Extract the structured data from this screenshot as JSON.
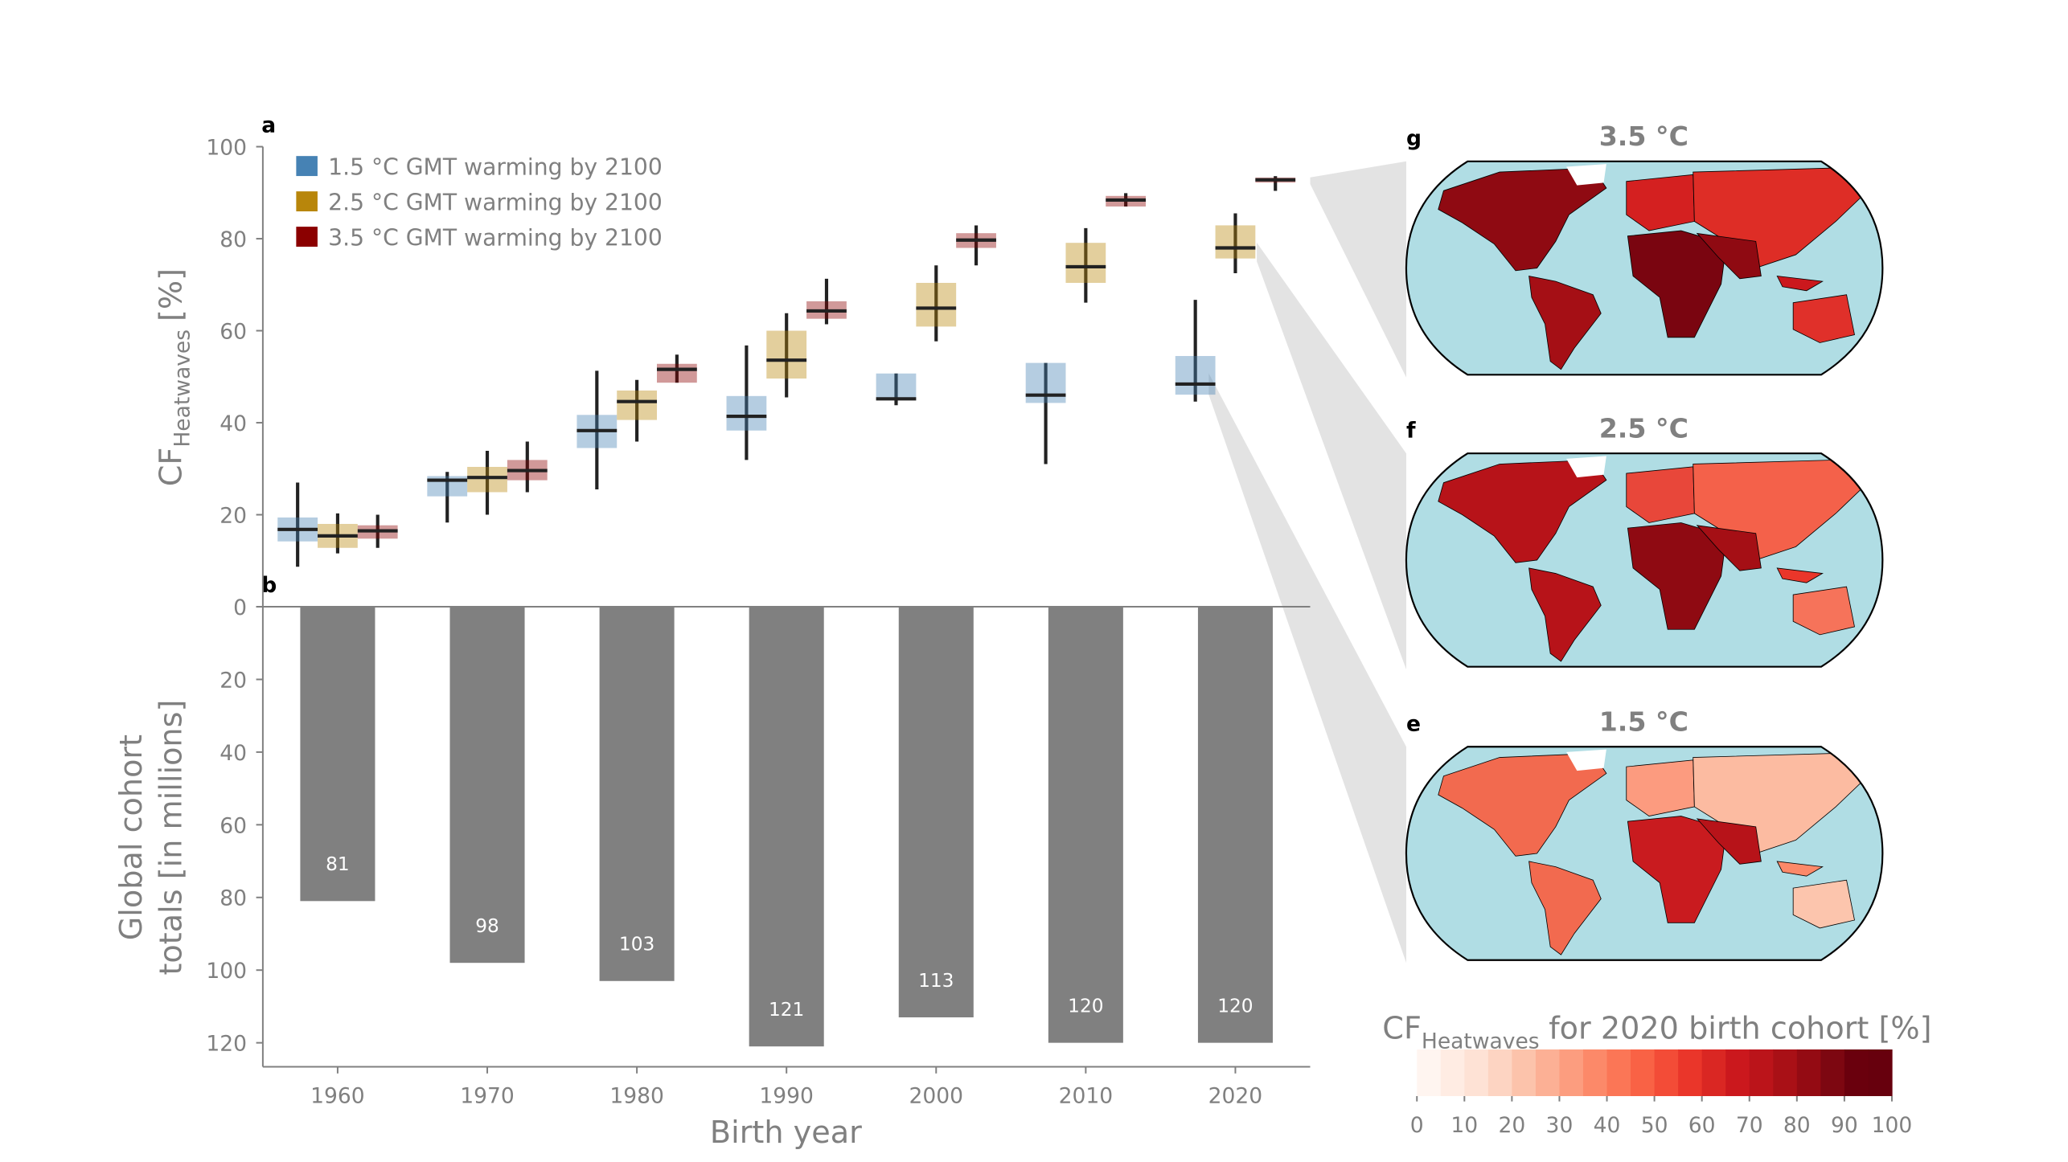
{
  "chart_data": [
    {
      "type": "box",
      "panel": "a",
      "ylabel": "CF",
      "ylabel_sub": "Heatwaves",
      "ylabel_unit": "[%]",
      "ylim": [
        0,
        100
      ],
      "yticks": [
        0,
        20,
        40,
        60,
        80,
        100
      ],
      "box_alpha": 0.4,
      "legend": "upper left",
      "series": [
        {
          "name": "1.5 °C GMT warming by 2100",
          "color": "#4682b4",
          "values": [
            {
              "whislo": 8.7,
              "q1": 14.2,
              "med": 16.8,
              "q3": 19.4,
              "whishi": 27
            },
            {
              "whislo": 18.3,
              "q1": 24,
              "med": 27.5,
              "q3": 28.4,
              "whishi": 29.3
            },
            {
              "whislo": 25.5,
              "q1": 34.5,
              "med": 38.3,
              "q3": 41.7,
              "whishi": 51.3
            },
            {
              "whislo": 31.9,
              "q1": 38.3,
              "med": 41.4,
              "q3": 45.8,
              "whishi": 56.8
            },
            {
              "whislo": 43.8,
              "q1": 44.9,
              "med": 45.2,
              "q3": 50.7,
              "whishi": 50.7
            },
            {
              "whislo": 31,
              "q1": 44.3,
              "med": 46,
              "q3": 53,
              "whishi": 53
            },
            {
              "whislo": 44.6,
              "q1": 46.1,
              "med": 48.4,
              "q3": 54.5,
              "whishi": 66.7
            }
          ]
        },
        {
          "name": "2.5 °C GMT warming by 2100",
          "color": "#b8860b",
          "values": [
            {
              "whislo": 11.6,
              "q1": 12.8,
              "med": 15.4,
              "q3": 18,
              "whishi": 20.3
            },
            {
              "whislo": 20,
              "q1": 24.9,
              "med": 28.1,
              "q3": 30.4,
              "whishi": 33.9
            },
            {
              "whislo": 35.9,
              "q1": 40.6,
              "med": 44.6,
              "q3": 47,
              "whishi": 49.3
            },
            {
              "whislo": 45.5,
              "q1": 49.6,
              "med": 53.6,
              "q3": 60,
              "whishi": 63.8
            },
            {
              "whislo": 57.7,
              "q1": 60.9,
              "med": 64.9,
              "q3": 70.4,
              "whishi": 74.2
            },
            {
              "whislo": 66.1,
              "q1": 70.4,
              "med": 73.9,
              "q3": 79.1,
              "whishi": 82.3
            },
            {
              "whislo": 72.5,
              "q1": 75.7,
              "med": 78,
              "q3": 82.9,
              "whishi": 85.5
            }
          ]
        },
        {
          "name": "3.5 °C GMT warming by 2100",
          "color": "#8b0000",
          "values": [
            {
              "whislo": 12.8,
              "q1": 14.8,
              "med": 16.5,
              "q3": 17.7,
              "whishi": 20
            },
            {
              "whislo": 24.9,
              "q1": 27.5,
              "med": 29.6,
              "q3": 31.9,
              "whishi": 35.9
            },
            {
              "whislo": 48.7,
              "q1": 48.7,
              "med": 51.6,
              "q3": 52.8,
              "whishi": 54.8
            },
            {
              "whislo": 61.4,
              "q1": 62.6,
              "med": 64.3,
              "q3": 66.4,
              "whishi": 71.3
            },
            {
              "whislo": 74.2,
              "q1": 78,
              "med": 79.7,
              "q3": 81.2,
              "whishi": 82.9
            },
            {
              "whislo": 87,
              "q1": 87,
              "med": 88.4,
              "q3": 89.3,
              "whishi": 89.9
            },
            {
              "whislo": 90.4,
              "q1": 92.2,
              "med": 92.8,
              "q3": 93.3,
              "whishi": 93.6
            }
          ]
        }
      ]
    },
    {
      "type": "bar",
      "panel": "b",
      "ylabel": [
        "Global cohort",
        "totals [in millions]"
      ],
      "xlabel": "Birth year",
      "x": [
        1960,
        1970,
        1980,
        1990,
        2000,
        2010,
        2020
      ],
      "xlim": [
        1955,
        2025
      ],
      "xticks": [
        1960,
        1970,
        1980,
        1990,
        2000,
        2010,
        2020
      ],
      "values": [
        81,
        98,
        103,
        121,
        113,
        120,
        120
      ],
      "color": "#808080",
      "ylim": [
        0,
        126.6
      ],
      "yinvert": true,
      "yticks": [
        0,
        20,
        40,
        60,
        80,
        100,
        120
      ]
    },
    {
      "type": "colorbar",
      "label": "CF",
      "label_sub": "Heatwaves",
      "label_rest": "for 2020 birth cohort [%]",
      "xlim": [
        0,
        100
      ],
      "xticks": [
        0,
        10,
        20,
        30,
        40,
        50,
        60,
        70,
        80,
        90,
        100
      ],
      "colors": [
        "#fff5f0",
        "#ffece3",
        "#fee2d5",
        "#fdd4c2",
        "#fcc3ab",
        "#fcb095",
        "#fc9d7f",
        "#fc8969",
        "#fb7656",
        "#f96245",
        "#f34c37",
        "#ea362a",
        "#da2723",
        "#cb181d",
        "#bb141a",
        "#a91016",
        "#940b13",
        "#7d0711",
        "#6a000d",
        "#67000d"
      ]
    }
  ],
  "maps": [
    {
      "panel": "g",
      "title": "3.5 °C"
    },
    {
      "panel": "f",
      "title": "2.5 °C"
    },
    {
      "panel": "e",
      "title": "1.5 °C"
    }
  ]
}
